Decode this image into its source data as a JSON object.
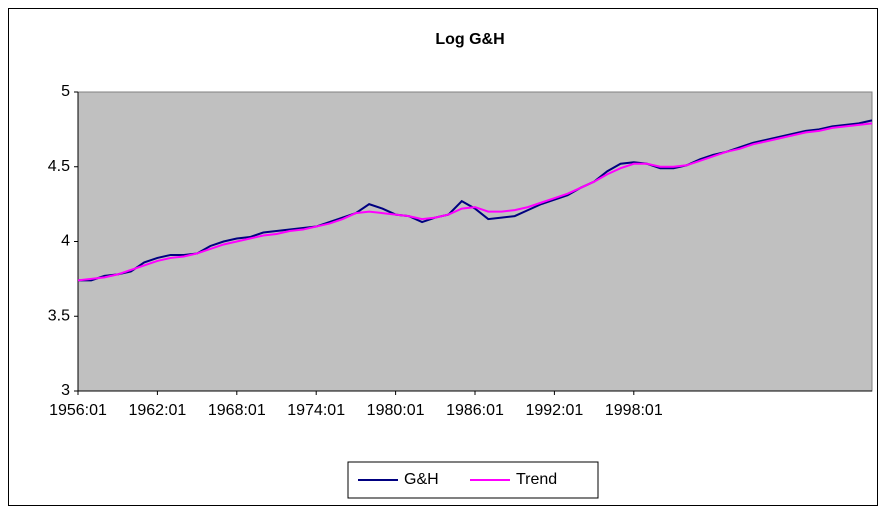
{
  "chart_data": {
    "type": "line",
    "title": "Log G&H",
    "categories": [
      "1956:01",
      null,
      null,
      null,
      null,
      null,
      "1962:01",
      null,
      null,
      null,
      null,
      null,
      "1968:01",
      null,
      null,
      null,
      null,
      null,
      "1974:01",
      null,
      null,
      null,
      null,
      null,
      "1980:01",
      null,
      null,
      null,
      null,
      null,
      "1986:01",
      null,
      null,
      null,
      null,
      null,
      "1992:01",
      null,
      null,
      null,
      null,
      null,
      "1998:01",
      null,
      null,
      null,
      null,
      null,
      null,
      null,
      null,
      null,
      null,
      null,
      null,
      null,
      null,
      null,
      null,
      null,
      null
    ],
    "series": [
      {
        "name": "G&H",
        "color": "#000080",
        "values": [
          3.74,
          3.74,
          3.77,
          3.78,
          3.8,
          3.86,
          3.89,
          3.91,
          3.91,
          3.92,
          3.97,
          4.0,
          4.02,
          4.03,
          4.06,
          4.07,
          4.08,
          4.09,
          4.1,
          4.13,
          4.16,
          4.19,
          4.25,
          4.22,
          4.18,
          4.17,
          4.13,
          4.16,
          4.18,
          4.27,
          4.22,
          4.15,
          4.16,
          4.17,
          4.21,
          4.25,
          4.28,
          4.31,
          4.36,
          4.4,
          4.47,
          4.52,
          4.53,
          4.52,
          4.49,
          4.49,
          4.51,
          4.55,
          4.58,
          4.6,
          4.63,
          4.66,
          4.68,
          4.7,
          4.72,
          4.74,
          4.75,
          4.77,
          4.78,
          4.79,
          4.81
        ]
      },
      {
        "name": "Trend",
        "color": "#ff00ff",
        "values": [
          3.74,
          3.75,
          3.76,
          3.78,
          3.81,
          3.84,
          3.87,
          3.89,
          3.9,
          3.92,
          3.95,
          3.98,
          4.0,
          4.02,
          4.04,
          4.05,
          4.07,
          4.08,
          4.1,
          4.12,
          4.15,
          4.19,
          4.2,
          4.19,
          4.18,
          4.17,
          4.15,
          4.16,
          4.18,
          4.22,
          4.23,
          4.2,
          4.2,
          4.21,
          4.23,
          4.26,
          4.29,
          4.32,
          4.36,
          4.4,
          4.45,
          4.49,
          4.52,
          4.52,
          4.5,
          4.5,
          4.51,
          4.54,
          4.57,
          4.6,
          4.62,
          4.65,
          4.67,
          4.69,
          4.71,
          4.73,
          4.74,
          4.76,
          4.77,
          4.78,
          4.79
        ]
      }
    ],
    "ylim": [
      3,
      5
    ],
    "yticks": [
      3,
      3.5,
      4,
      4.5,
      5
    ],
    "grid": false,
    "legend": "bottom",
    "plot_background": "#c0c0c0"
  }
}
